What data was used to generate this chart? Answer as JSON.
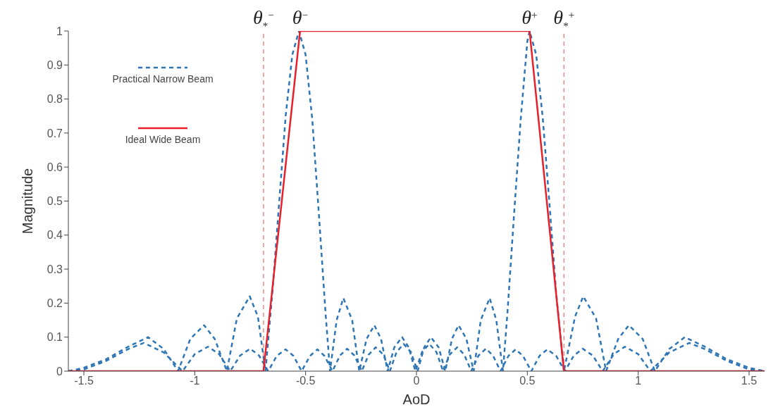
{
  "chart_data": {
    "type": "line",
    "xlabel": "AoD",
    "ylabel": "Magnitude",
    "xlim": [
      -1.57,
      1.57
    ],
    "xticks": [
      -1.5,
      -1,
      -0.5,
      0,
      0.5,
      1,
      1.5
    ],
    "ylim": [
      0,
      1
    ],
    "yticks": [
      0,
      0.1,
      0.2,
      0.3,
      0.4,
      0.5,
      0.6,
      0.7,
      0.8,
      0.9,
      1
    ],
    "grid": false,
    "legend": "top left",
    "series": [
      {
        "name": "Practical Narrow Beam",
        "color": "#2e75b6",
        "line_style": "dashed",
        "x": [
          -1.57,
          -1.5,
          -1.4,
          -1.3,
          -1.21,
          -1.14,
          -1.075,
          -1.02,
          -0.958,
          -0.91,
          -0.855,
          -0.81,
          -0.752,
          -0.715,
          -0.681,
          -0.65,
          -0.62,
          -0.59,
          -0.56,
          -0.53,
          -0.5,
          -0.47,
          -0.44,
          -0.41,
          -0.39,
          -0.36,
          -0.33,
          -0.29,
          -0.258,
          -0.225,
          -0.19,
          -0.16,
          -0.13,
          -0.1,
          -0.065,
          -0.035,
          -0.005,
          0.025,
          0.058,
          0.09,
          0.12,
          0.15,
          0.184,
          0.215,
          0.247,
          0.28,
          0.313,
          0.345,
          0.379,
          0.415,
          0.447,
          0.48,
          0.518,
          0.555,
          0.59,
          0.63,
          0.669,
          0.71,
          0.75,
          0.795,
          0.84,
          0.89,
          0.94,
          1,
          1.055,
          1.14,
          1.23,
          1.3,
          1.4,
          1.5,
          1.57
        ],
        "values": [
          0,
          0.01,
          0.035,
          0.072,
          0.1,
          0.065,
          0,
          0.095,
          0.135,
          0.095,
          0,
          0.155,
          0.22,
          0.16,
          0,
          0.23,
          0.49,
          0.75,
          0.93,
          1,
          0.93,
          0.74,
          0.46,
          0.17,
          0,
          0.15,
          0.215,
          0.15,
          0,
          0.095,
          0.135,
          0.095,
          0,
          0.07,
          0.1,
          0.07,
          0,
          0.056,
          0.08,
          0.056,
          0,
          0.049,
          0.07,
          0.049,
          0,
          0.046,
          0.066,
          0.046,
          0,
          0.045,
          0.064,
          0.045,
          0,
          0.045,
          0.064,
          0.045,
          0,
          0.046,
          0.066,
          0.046,
          0,
          0.05,
          0.072,
          0.05,
          0,
          0.055,
          0.083,
          0.065,
          0.03,
          0.005,
          0
        ]
      },
      {
        "color": "#2e75b6",
        "line_style": "dashed",
        "x": [
          -1.57,
          -1.5,
          -1.4,
          -1.3,
          -1.23,
          -1.14,
          -1.055,
          -1,
          -0.94,
          -0.89,
          -0.84,
          -0.795,
          -0.75,
          -0.71,
          -0.669,
          -0.63,
          -0.59,
          -0.555,
          -0.518,
          -0.48,
          -0.447,
          -0.415,
          -0.379,
          -0.345,
          -0.313,
          -0.28,
          -0.247,
          -0.215,
          -0.184,
          -0.15,
          -0.12,
          -0.09,
          -0.058,
          -0.025,
          0.005,
          0.035,
          0.065,
          0.1,
          0.13,
          0.16,
          0.19,
          0.225,
          0.258,
          0.29,
          0.33,
          0.36,
          0.39,
          0.41,
          0.44,
          0.47,
          0.5,
          0.51,
          0.54,
          0.57,
          0.6,
          0.63,
          0.665,
          0.715,
          0.752,
          0.81,
          0.855,
          0.91,
          0.958,
          1.02,
          1.075,
          1.14,
          1.21,
          1.3,
          1.4,
          1.5,
          1.57
        ],
        "values": [
          0,
          0.005,
          0.03,
          0.065,
          0.083,
          0.055,
          0,
          0.05,
          0.072,
          0.05,
          0,
          0.046,
          0.066,
          0.046,
          0,
          0.045,
          0.064,
          0.045,
          0,
          0.045,
          0.064,
          0.045,
          0,
          0.046,
          0.066,
          0.046,
          0,
          0.049,
          0.07,
          0.049,
          0,
          0.056,
          0.08,
          0.056,
          0,
          0.07,
          0.1,
          0.07,
          0,
          0.095,
          0.135,
          0.095,
          0,
          0.15,
          0.215,
          0.15,
          0,
          0.17,
          0.46,
          0.74,
          0.97,
          1,
          0.93,
          0.74,
          0.49,
          0.23,
          0,
          0.16,
          0.22,
          0.155,
          0,
          0.095,
          0.135,
          0.095,
          0,
          0.065,
          0.1,
          0.072,
          0.035,
          0.01,
          0
        ]
      },
      {
        "name": "Ideal Wide Beam",
        "color": "#e8202a",
        "line_style": "solid",
        "x": [
          -1.57,
          -0.69,
          -0.525,
          0.51,
          0.665,
          1.57
        ],
        "values": [
          0,
          0,
          1,
          1,
          0,
          0
        ]
      }
    ],
    "ref_lines": [
      {
        "axis": "x",
        "value": -0.69,
        "label": "θ$_{*}$$^{−}$",
        "color": "#f08a8a",
        "line_style": "dashed"
      },
      {
        "axis": "x",
        "value": 0.665,
        "label": "θ$_{*}$$^{+}$",
        "color": "#f08a8a",
        "line_style": "dashed"
      }
    ],
    "annotations": [
      {
        "text": "θ$^{−}$",
        "x": -0.525,
        "y": 1
      },
      {
        "text": "θ$^{+}$",
        "x": 0.51,
        "y": 1
      }
    ]
  }
}
